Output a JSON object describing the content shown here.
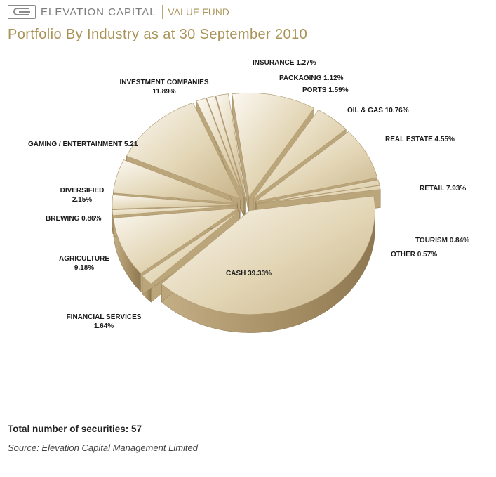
{
  "header": {
    "brand": "ELEVATION CAPITAL",
    "fund": "VALUE FUND",
    "logo_icon": "elevation-capital-logo"
  },
  "chart_data": {
    "type": "pie",
    "title": "Portfolio By Industry as at 30 September 2010",
    "slices": [
      {
        "label": "CASH",
        "value": 39.33,
        "display": "CASH 39.33%"
      },
      {
        "label": "FINANCIAL SERVICES",
        "value": 1.64,
        "display": [
          "FINANCIAL SERVICES",
          "1.64%"
        ]
      },
      {
        "label": "AGRICULTURE",
        "value": 9.18,
        "display": [
          "AGRICULTURE",
          "9.18%"
        ]
      },
      {
        "label": "BREWING",
        "value": 0.86,
        "display": "BREWING 0.86%"
      },
      {
        "label": "DIVERSIFIED",
        "value": 2.15,
        "display": [
          "DIVERSIFIED",
          "2.15%"
        ]
      },
      {
        "label": "GAMING / ENTERTAINMENT",
        "value": 5.21,
        "display": "GAMING / ENTERTAINMENT 5.21"
      },
      {
        "label": "INVESTMENT COMPANIES",
        "value": 11.89,
        "display": [
          "INVESTMENT COMPANIES",
          "11.89%"
        ]
      },
      {
        "label": "INSURANCE",
        "value": 1.27,
        "display": "INSURANCE 1.27%"
      },
      {
        "label": "PACKAGING",
        "value": 1.12,
        "display": "PACKAGING 1.12%"
      },
      {
        "label": "PORTS",
        "value": 1.59,
        "display": "PORTS 1.59%"
      },
      {
        "label": "OIL & GAS",
        "value": 10.76,
        "display": "OIL & GAS 10.76%"
      },
      {
        "label": "REAL ESTATE",
        "value": 4.55,
        "display": "REAL ESTATE 4.55%"
      },
      {
        "label": "RETAIL",
        "value": 7.93,
        "display": "RETAIL 7.93%"
      },
      {
        "label": "TOURISM",
        "value": 0.84,
        "display": "TOURISM 0.84%"
      },
      {
        "label": "OTHER",
        "value": 0.57,
        "display": "OTHER 0.57%"
      }
    ],
    "colors": {
      "top": "#e2d5b5",
      "top_light": "#f4efe2",
      "side": "#a89066",
      "edge": "#8c7754"
    }
  },
  "footer": {
    "total": "Total number of securities: 57",
    "source": "Source: Elevation Capital Management Limited"
  }
}
